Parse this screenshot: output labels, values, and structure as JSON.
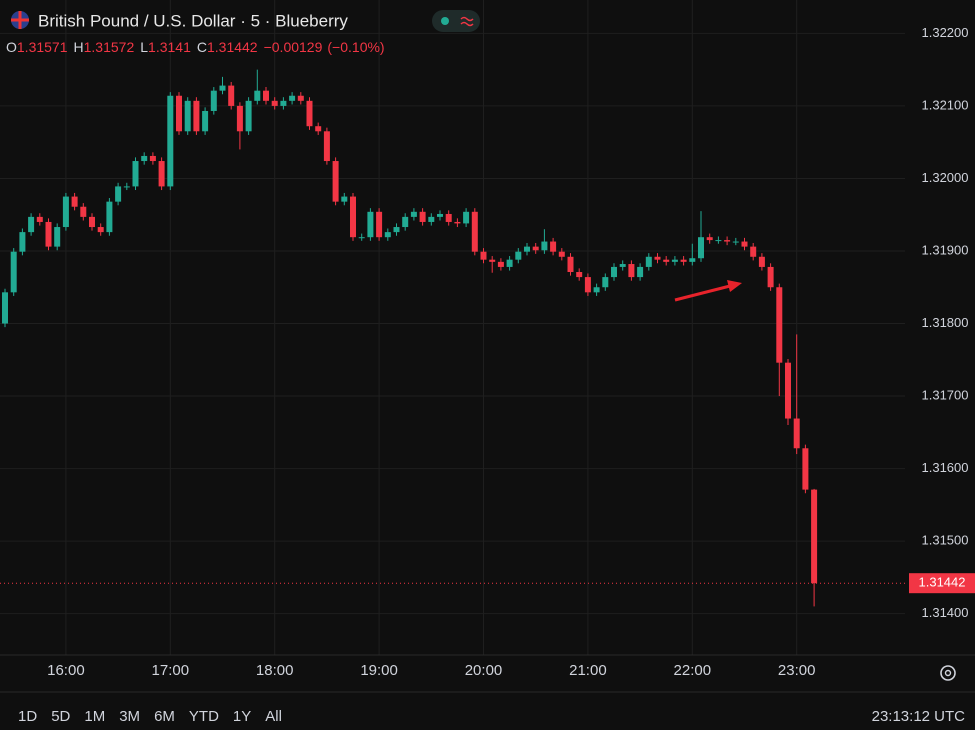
{
  "chart_data": {
    "type": "candlestick",
    "title": "British Pound / U.S. Dollar · 5 · Blueberry",
    "ohlc_labels": [
      "O",
      "H",
      "L",
      "C"
    ],
    "change": "−0.00129",
    "change_pct": "(−0.10%)",
    "categories": [
      null,
      null,
      null,
      null,
      null,
      null,
      null,
      "16:00",
      null,
      null,
      null,
      null,
      null,
      null,
      null,
      null,
      null,
      null,
      null,
      "17:00",
      null,
      null,
      null,
      null,
      null,
      null,
      null,
      null,
      null,
      null,
      null,
      "18:00",
      null,
      null,
      null,
      null,
      null,
      null,
      null,
      null,
      null,
      null,
      null,
      "19:00",
      null,
      null,
      null,
      null,
      null,
      null,
      null,
      null,
      null,
      null,
      null,
      "20:00",
      null,
      null,
      null,
      null,
      null,
      null,
      null,
      null,
      null,
      null,
      null,
      "21:00",
      null,
      null,
      null,
      null,
      null,
      null,
      null,
      null,
      null,
      null,
      null,
      "22:00",
      null,
      null,
      null,
      null,
      null,
      null,
      null,
      null,
      null,
      null,
      null,
      "23:00",
      null,
      null
    ],
    "open": [
      1.318,
      1.31843,
      1.31899,
      1.31926,
      1.31947,
      1.3194,
      1.31906,
      1.31933,
      1.31975,
      1.31961,
      1.31947,
      1.31933,
      1.31926,
      1.31968,
      1.31989,
      1.31989,
      1.32024,
      1.32031,
      1.32024,
      1.31989,
      1.32114,
      1.32065,
      1.32107,
      1.32065,
      1.32093,
      1.32121,
      1.32128,
      1.321,
      1.32065,
      1.32107,
      1.32121,
      1.32107,
      1.321,
      1.32107,
      1.32114,
      1.32107,
      1.32072,
      1.32065,
      1.32024,
      1.31968,
      1.31975,
      1.31919,
      1.31919,
      1.31954,
      1.31919,
      1.31926,
      1.31933,
      1.31947,
      1.31954,
      1.3194,
      1.31947,
      1.31951,
      1.3194,
      1.31938,
      1.31954,
      1.31899,
      1.31888,
      1.31885,
      1.31878,
      1.31888,
      1.31899,
      1.31906,
      1.31901,
      1.31913,
      1.31899,
      1.31892,
      1.31871,
      1.31864,
      1.31843,
      1.3185,
      1.31864,
      1.31878,
      1.31882,
      1.31864,
      1.31878,
      1.31892,
      1.31888,
      1.31885,
      1.31888,
      1.31885,
      1.3189,
      1.31919,
      1.31915,
      1.31915,
      1.31913,
      1.31913,
      1.31906,
      1.31892,
      1.31878,
      1.3185,
      1.31746,
      1.31669,
      1.31628,
      1.31571
    ],
    "high": [
      1.31848,
      1.31904,
      1.31931,
      1.31952,
      1.31952,
      1.31945,
      1.31938,
      1.3198,
      1.3198,
      1.31966,
      1.31952,
      1.31938,
      1.31973,
      1.31994,
      1.31994,
      1.32029,
      1.32036,
      1.32036,
      1.32029,
      1.32119,
      1.32119,
      1.32112,
      1.32112,
      1.32098,
      1.32126,
      1.3214,
      1.32133,
      1.32105,
      1.32112,
      1.3215,
      1.32126,
      1.32112,
      1.32112,
      1.32119,
      1.32119,
      1.32112,
      1.32077,
      1.3207,
      1.32029,
      1.3198,
      1.3198,
      1.31924,
      1.31959,
      1.31959,
      1.31931,
      1.31938,
      1.31952,
      1.31959,
      1.31959,
      1.31952,
      1.31956,
      1.31956,
      1.31945,
      1.31959,
      1.31959,
      1.31904,
      1.31893,
      1.3189,
      1.31893,
      1.31904,
      1.31911,
      1.31911,
      1.3193,
      1.31918,
      1.31904,
      1.31897,
      1.31876,
      1.31869,
      1.31855,
      1.31869,
      1.31883,
      1.31887,
      1.31887,
      1.31883,
      1.31897,
      1.31897,
      1.31893,
      1.31893,
      1.31893,
      1.3191,
      1.31955,
      1.31924,
      1.3192,
      1.3192,
      1.31918,
      1.31918,
      1.31911,
      1.31897,
      1.31883,
      1.31855,
      1.31751,
      1.31785,
      1.31633,
      1.31572
    ],
    "low": [
      1.31795,
      1.31838,
      1.31894,
      1.31921,
      1.31935,
      1.31901,
      1.31901,
      1.31928,
      1.31956,
      1.31942,
      1.31928,
      1.31921,
      1.31921,
      1.31963,
      1.31984,
      1.31984,
      1.32019,
      1.32019,
      1.31984,
      1.31984,
      1.3206,
      1.3206,
      1.3206,
      1.3206,
      1.32088,
      1.32116,
      1.32095,
      1.3204,
      1.3206,
      1.32102,
      1.32102,
      1.32095,
      1.32095,
      1.32102,
      1.32102,
      1.32067,
      1.3206,
      1.32019,
      1.31963,
      1.31963,
      1.31914,
      1.31914,
      1.31914,
      1.31914,
      1.31914,
      1.31921,
      1.31928,
      1.31942,
      1.31935,
      1.31935,
      1.31942,
      1.31935,
      1.31933,
      1.31933,
      1.31894,
      1.31883,
      1.3187,
      1.31873,
      1.31873,
      1.31883,
      1.31894,
      1.31896,
      1.31896,
      1.31894,
      1.31887,
      1.31866,
      1.31859,
      1.31838,
      1.31838,
      1.31845,
      1.31859,
      1.31873,
      1.31859,
      1.31859,
      1.31873,
      1.31883,
      1.3188,
      1.3188,
      1.3188,
      1.3188,
      1.31885,
      1.3191,
      1.3191,
      1.31908,
      1.31908,
      1.31901,
      1.31887,
      1.31873,
      1.31845,
      1.317,
      1.3166,
      1.3162,
      1.31566,
      1.3141
    ],
    "close": [
      1.31843,
      1.31899,
      1.31926,
      1.31947,
      1.3194,
      1.31906,
      1.31933,
      1.31975,
      1.31961,
      1.31947,
      1.31933,
      1.31926,
      1.31968,
      1.31989,
      1.31989,
      1.32024,
      1.32031,
      1.32024,
      1.31989,
      1.32114,
      1.32065,
      1.32107,
      1.32065,
      1.32093,
      1.32121,
      1.32128,
      1.321,
      1.32065,
      1.32107,
      1.32121,
      1.32107,
      1.321,
      1.32107,
      1.32114,
      1.32107,
      1.32072,
      1.32065,
      1.32024,
      1.31968,
      1.31975,
      1.31919,
      1.31919,
      1.31954,
      1.31919,
      1.31926,
      1.31933,
      1.31947,
      1.31954,
      1.3194,
      1.31947,
      1.31951,
      1.3194,
      1.31938,
      1.31954,
      1.31899,
      1.31888,
      1.31885,
      1.31878,
      1.31888,
      1.31899,
      1.31906,
      1.31901,
      1.31913,
      1.31899,
      1.31892,
      1.31871,
      1.31864,
      1.31843,
      1.3185,
      1.31864,
      1.31878,
      1.31882,
      1.31864,
      1.31878,
      1.31892,
      1.31888,
      1.31885,
      1.31888,
      1.31885,
      1.3189,
      1.31919,
      1.31915,
      1.31915,
      1.31913,
      1.31913,
      1.31906,
      1.31892,
      1.31878,
      1.3185,
      1.31746,
      1.31669,
      1.31628,
      1.31571,
      1.31442
    ],
    "up_color": "#22ab94",
    "down_color": "#f23645",
    "ylim": [
      1.31343,
      1.32246
    ],
    "yticks": [
      {
        "value": 1.314,
        "label": "1.31400"
      },
      {
        "value": 1.315,
        "label": "1.31500"
      },
      {
        "value": 1.316,
        "label": "1.31600"
      },
      {
        "value": 1.317,
        "label": "1.31700"
      },
      {
        "value": 1.318,
        "label": "1.31800"
      },
      {
        "value": 1.319,
        "label": "1.31900"
      },
      {
        "value": 1.32,
        "label": "1.32000"
      },
      {
        "value": 1.321,
        "label": "1.32100"
      },
      {
        "value": 1.322,
        "label": "1.32200"
      }
    ],
    "grid": true
  },
  "toolbar": {
    "ranges": [
      "1D",
      "5D",
      "1M",
      "3M",
      "6M",
      "YTD",
      "1Y",
      "All"
    ],
    "clock": "23:13:12 UTC"
  }
}
